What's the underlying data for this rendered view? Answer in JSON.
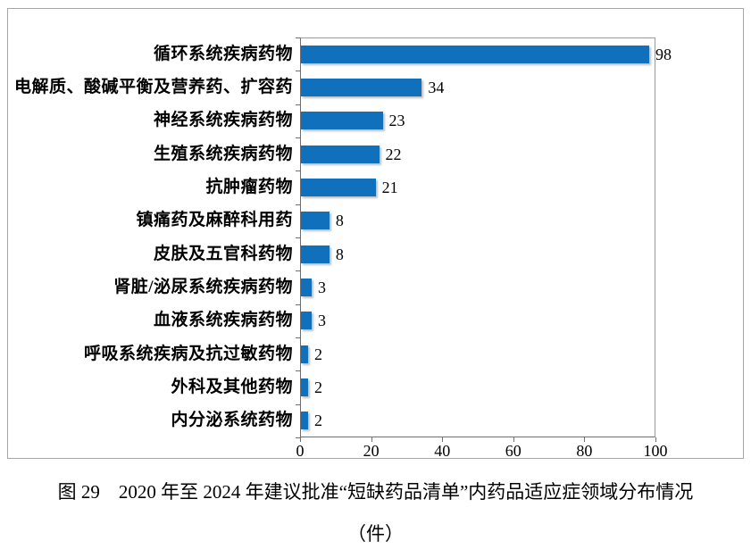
{
  "caption": {
    "line1": "图 29　2020 年至 2024 年建议批准“短缺药品清单”内药品适应症领域分布情况",
    "line2": "（件）"
  },
  "chart_data": {
    "type": "bar",
    "orientation": "horizontal",
    "title": "",
    "xlabel": "",
    "ylabel": "",
    "categories": [
      "循环系统疾病药物",
      "电解质、酸碱平衡及营养药、扩容药",
      "神经系统疾病药物",
      "生殖系统疾病药物",
      "抗肿瘤药物",
      "镇痛药及麻醉科用药",
      "皮肤及五官科药物",
      "肾脏/泌尿系统疾病药物",
      "血液系统疾病药物",
      "呼吸系统疾病及抗过敏药物",
      "外科及其他药物",
      "内分泌系统药物"
    ],
    "values": [
      98,
      34,
      23,
      22,
      21,
      8,
      8,
      3,
      3,
      2,
      2,
      2
    ],
    "xlim": [
      0,
      100
    ],
    "xticks": [
      0,
      20,
      40,
      60,
      80,
      100
    ],
    "value_labels_shown": true,
    "grid": "off",
    "legend": "none",
    "bar_color": "#1170bb",
    "axis_color": "#6e6e6e",
    "frame_border_color": "#a6a6a6"
  }
}
